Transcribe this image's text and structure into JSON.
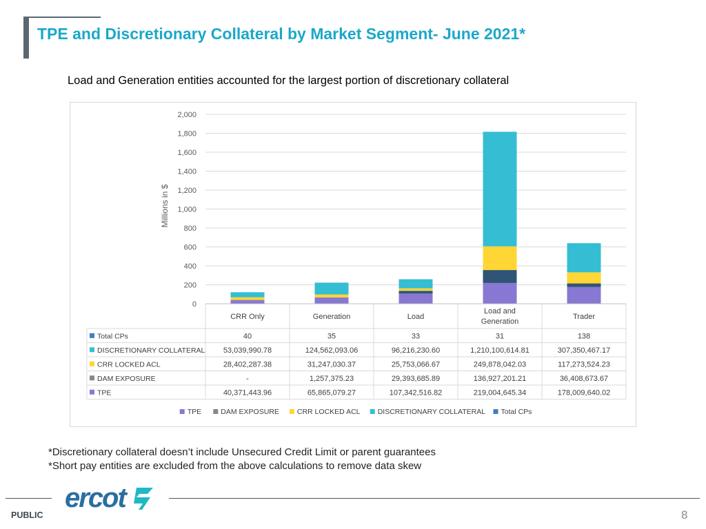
{
  "header": {
    "title": "TPE and Discretionary Collateral by Market Segment- June 2021*",
    "subtitle": "Load and Generation entities accounted for the largest portion of discretionary collateral"
  },
  "colors": {
    "title": "#1ba8c8",
    "TPE": "#8878d3",
    "DAM EXPOSURE": "#2f5476",
    "CRR LOCKED ACL": "#ffd633",
    "DISCRETIONARY COLLATERAL": "#34bdd3",
    "Total CPs": "#3f7fc0",
    "logo": "#2a6f9e",
    "logo_mark": "#1fb8c6"
  },
  "chart_data": {
    "type": "bar",
    "stacked": true,
    "ylabel": "Millions in $",
    "ylim": [
      0,
      2000
    ],
    "yticks": [
      "0",
      "200",
      "400",
      "600",
      "800",
      "1,000",
      "1,200",
      "1,400",
      "1,600",
      "1,800",
      "2,000"
    ],
    "grid": true,
    "legend_position": "bottom",
    "categories": [
      "CRR Only",
      "Generation",
      "Load",
      "Load and Generation",
      "Trader"
    ],
    "series": [
      {
        "name": "TPE",
        "values": [
          40.37,
          65.87,
          107.34,
          219.0,
          178.01
        ],
        "labels": [
          "40,371,443.96",
          "65,865,079.27",
          "107,342,516.82",
          "219,004,645.34",
          "178,009,640.02"
        ]
      },
      {
        "name": "DAM  EXPOSURE",
        "values": [
          0,
          1.26,
          29.39,
          136.93,
          36.41
        ],
        "labels": [
          "-",
          "1,257,375.23",
          "29,393,685.89",
          "136,927,201.21",
          "36,408,673.67"
        ]
      },
      {
        "name": "CRR LOCKED ACL",
        "values": [
          28.4,
          31.25,
          25.75,
          249.88,
          117.27
        ],
        "labels": [
          "28,402,287.38",
          "31,247,030.37",
          "25,753,066.67",
          "249,878,042.03",
          "117,273,524.23"
        ]
      },
      {
        "name": "DISCRETIONARY COLLATERAL",
        "values": [
          53.04,
          124.56,
          96.22,
          1210.1,
          307.35
        ],
        "labels": [
          "53,039,990.78",
          "124,562,093.06",
          "96,216,230.60",
          "1,210,100,614.81",
          "307,350,467.17"
        ]
      },
      {
        "name": "Total CPs",
        "values": [
          40,
          35,
          33,
          31,
          138
        ],
        "labels": [
          "40",
          "35",
          "33",
          "31",
          "138"
        ],
        "table_only": true
      }
    ],
    "table_row_order": [
      "Total CPs",
      "DISCRETIONARY COLLATERAL",
      "CRR LOCKED ACL",
      "DAM  EXPOSURE",
      "TPE"
    ]
  },
  "footnotes": [
    "*Discretionary collateral doesn’t include Unsecured Credit Limit or parent guarantees",
    "*Short pay entities are excluded from the above calculations to remove data skew"
  ],
  "footer": {
    "logo_text": "ercot",
    "classification": "PUBLIC",
    "page_number": "8"
  }
}
